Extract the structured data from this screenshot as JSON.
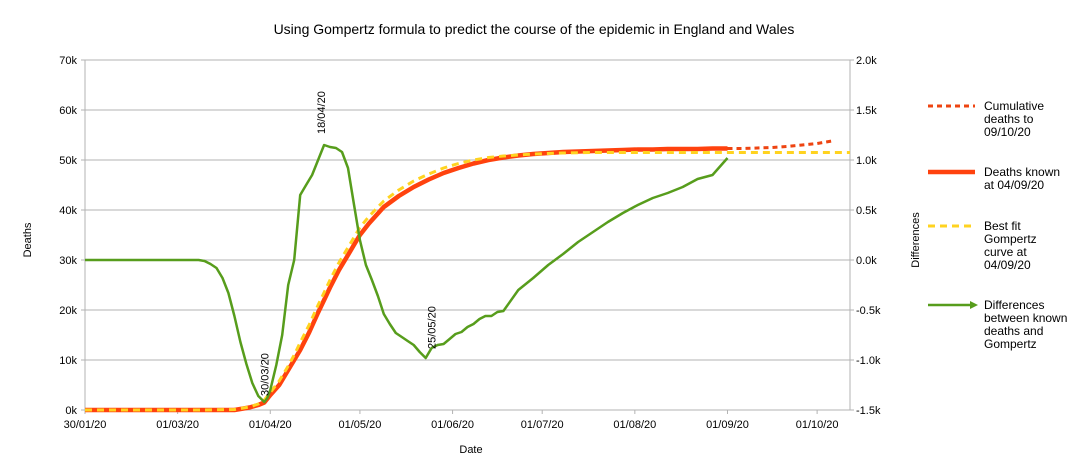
{
  "chart_data": {
    "type": "line",
    "title": "Using Gompertz formula to predict the course of the epidemic in England and Wales",
    "xlabel": "Date",
    "ylabel_left": "Deaths",
    "ylabel_right": "Differences",
    "x_tick_labels": [
      "30/01/20",
      "01/03/20",
      "01/04/20",
      "01/05/20",
      "01/06/20",
      "01/07/20",
      "01/08/20",
      "01/09/20",
      "01/10/20"
    ],
    "x_tick_days": [
      0,
      31,
      62,
      92,
      123,
      153,
      184,
      215,
      245
    ],
    "x_range_days": [
      0,
      256
    ],
    "y_left_ticks": [
      "0k",
      "10k",
      "20k",
      "30k",
      "40k",
      "50k",
      "60k",
      "70k"
    ],
    "y_left_range": [
      0,
      70000
    ],
    "y_right_ticks": [
      "-1.5k",
      "-1.0k",
      "-0.5k",
      "0.0k",
      "0.5k",
      "1.0k",
      "1.5k",
      "2.0k"
    ],
    "y_right_range": [
      -1500,
      2000
    ],
    "grid": true,
    "legend_position": "right",
    "colors": {
      "cumulative": "#ee4411",
      "known": "#ff420e",
      "gompertz": "#ffd320",
      "differences": "#579d1c"
    },
    "series": [
      {
        "name": "Cumulative deaths to 09/10/20",
        "axis": "left",
        "style": "dotted",
        "x": [
          215,
          220,
          225,
          230,
          235,
          240,
          245,
          250
        ],
        "y": [
          52300,
          52300,
          52400,
          52500,
          52700,
          53000,
          53300,
          53800
        ]
      },
      {
        "name": "Deaths known at 04/09/20",
        "axis": "left",
        "style": "solid-thick",
        "x": [
          0,
          40,
          50,
          55,
          58,
          60,
          62,
          65,
          68,
          70,
          72,
          75,
          78,
          80,
          82,
          85,
          88,
          90,
          92,
          95,
          98,
          100,
          105,
          110,
          115,
          120,
          125,
          130,
          135,
          140,
          145,
          150,
          155,
          160,
          165,
          170,
          175,
          180,
          185,
          190,
          195,
          200,
          205,
          210,
          215
        ],
        "y": [
          0,
          0,
          0,
          500,
          1000,
          1500,
          3000,
          5000,
          8000,
          10000,
          12000,
          15500,
          19500,
          22000,
          24500,
          28000,
          31000,
          33000,
          35000,
          37300,
          39300,
          40600,
          42800,
          44600,
          46100,
          47400,
          48400,
          49300,
          50000,
          50500,
          50900,
          51200,
          51400,
          51600,
          51700,
          51800,
          51900,
          52000,
          52100,
          52100,
          52200,
          52200,
          52200,
          52300,
          52300
        ]
      },
      {
        "name": "Best fit Gompertz curve at 04/09/20",
        "axis": "left",
        "style": "dashed",
        "x": [
          0,
          40,
          50,
          55,
          58,
          60,
          62,
          65,
          68,
          70,
          72,
          75,
          78,
          80,
          82,
          85,
          88,
          90,
          92,
          95,
          98,
          100,
          105,
          110,
          115,
          120,
          125,
          130,
          135,
          140,
          145,
          150,
          155,
          160,
          170,
          180,
          190,
          200,
          210,
          220,
          230,
          240,
          250,
          256
        ],
        "y": [
          0,
          0,
          100,
          600,
          1200,
          2000,
          3500,
          5800,
          8800,
          11000,
          13500,
          17000,
          21000,
          23500,
          26000,
          29500,
          32500,
          34500,
          36500,
          38700,
          40600,
          41800,
          44000,
          45800,
          47200,
          48400,
          49300,
          50000,
          50500,
          50800,
          51000,
          51200,
          51300,
          51400,
          51500,
          51500,
          51500,
          51500,
          51500,
          51500,
          51500,
          51500,
          51500,
          51500
        ]
      },
      {
        "name": "Differences between known deaths and Gompertz",
        "axis": "right",
        "style": "solid",
        "x": [
          0,
          38,
          40,
          42,
          44,
          46,
          48,
          50,
          52,
          54,
          56,
          58,
          60,
          61,
          62,
          64,
          66,
          68,
          70,
          72,
          74,
          76,
          78,
          80,
          82,
          84,
          86,
          88,
          90,
          92,
          94,
          96,
          98,
          100,
          102,
          104,
          106,
          108,
          110,
          112,
          114,
          116,
          118,
          120,
          122,
          124,
          126,
          128,
          130,
          132,
          134,
          136,
          138,
          140,
          145,
          150,
          155,
          160,
          165,
          170,
          175,
          180,
          185,
          190,
          195,
          200,
          205,
          210,
          215
        ],
        "y": [
          0,
          0,
          -10,
          -40,
          -80,
          -180,
          -330,
          -560,
          -820,
          -1040,
          -1230,
          -1360,
          -1420,
          -1380,
          -1300,
          -1050,
          -750,
          -250,
          0,
          650,
          750,
          850,
          1000,
          1150,
          1130,
          1120,
          1080,
          920,
          560,
          200,
          -50,
          -200,
          -360,
          -540,
          -640,
          -730,
          -770,
          -810,
          -850,
          -920,
          -980,
          -880,
          -850,
          -840,
          -790,
          -740,
          -720,
          -670,
          -640,
          -590,
          -560,
          -560,
          -520,
          -510,
          -300,
          -180,
          -50,
          60,
          180,
          280,
          380,
          470,
          550,
          620,
          670,
          730,
          810,
          850,
          1020
        ]
      }
    ],
    "annotations": [
      {
        "text": "30/03/20",
        "x": 60,
        "axis": "right",
        "y": -1420
      },
      {
        "text": "18/04/20",
        "x": 79,
        "axis": "right",
        "y": 1200
      },
      {
        "text": "25/05/20",
        "x": 116,
        "axis": "right",
        "y": -950
      }
    ]
  }
}
